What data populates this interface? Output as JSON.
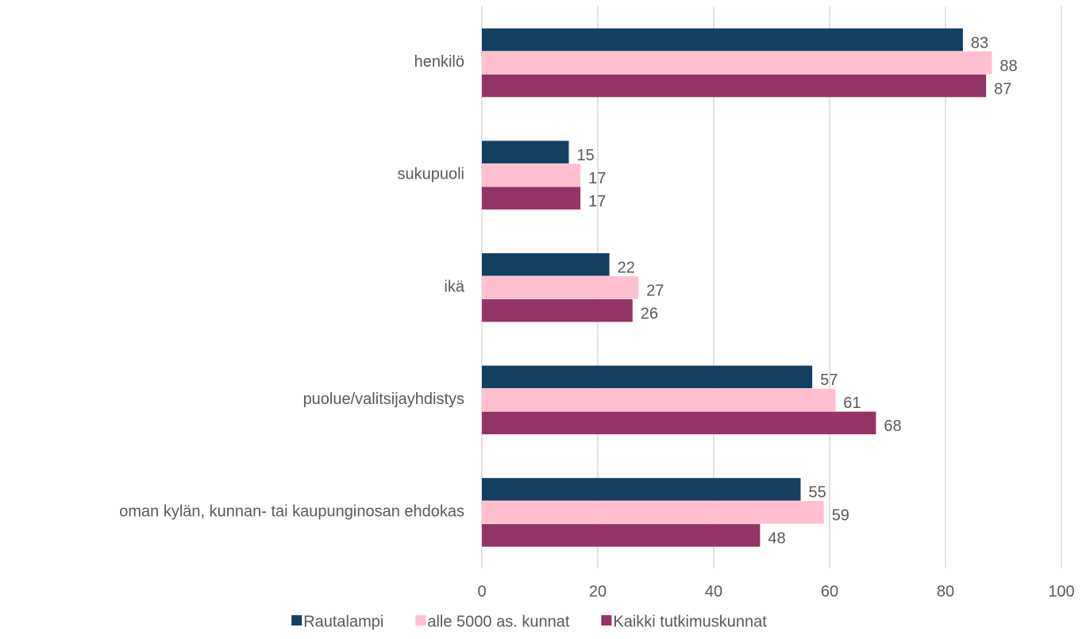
{
  "chart_data": {
    "type": "hbar",
    "categories": [
      "henkilö",
      "sukupuoli",
      "ikä",
      "puolue/valitsijayhdistys",
      "oman kylän, kunnan- tai kaupunginosan ehdokas"
    ],
    "series": [
      {
        "name": "Rautalampi",
        "color": "#143f61",
        "values": [
          83,
          15,
          22,
          57,
          55
        ]
      },
      {
        "name": "alle 5000 as. kunnat",
        "color": "#ffbfd0",
        "values": [
          88,
          17,
          27,
          61,
          59
        ]
      },
      {
        "name": "Kaikki tutkimuskunnat",
        "color": "#943366",
        "values": [
          87,
          17,
          26,
          68,
          48
        ]
      }
    ],
    "xlim": [
      0,
      100
    ],
    "xticks": [
      0,
      20,
      40,
      60,
      80,
      100
    ],
    "grid": true,
    "legend": "bottom"
  }
}
